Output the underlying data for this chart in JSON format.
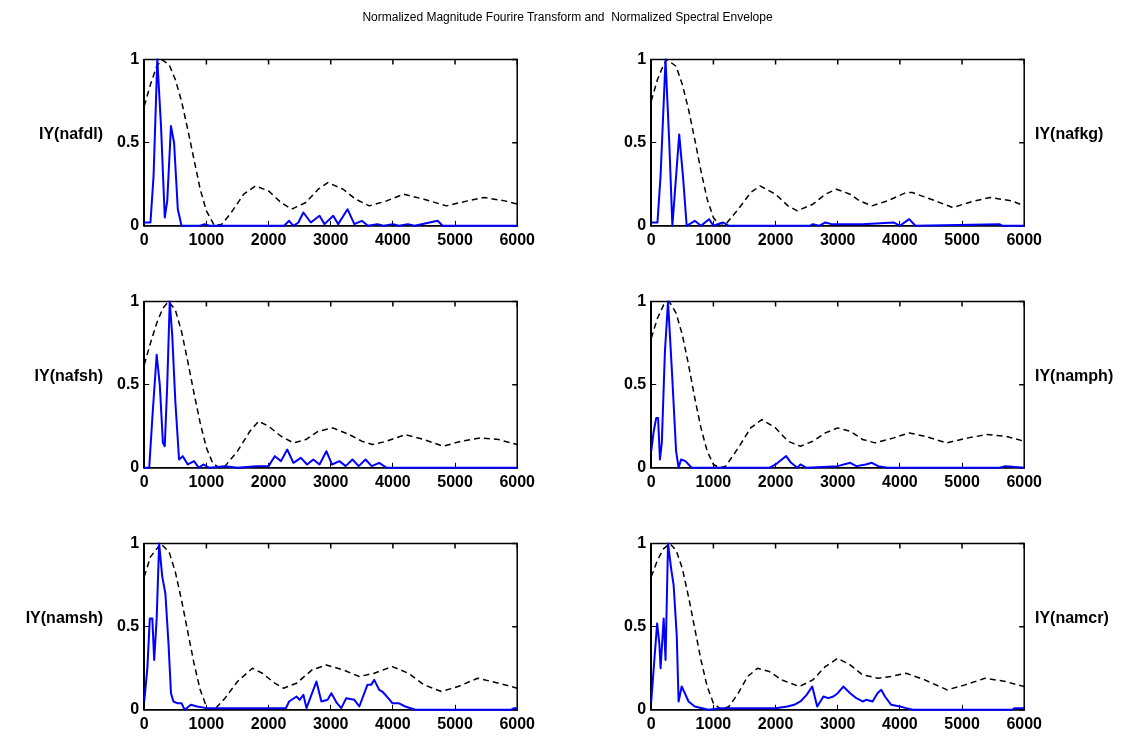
{
  "chart_data": [
    {
      "type": "line",
      "title": "Normalized Magnitude Fourire Transform and  Normalized Spectral Envelope",
      "ylabel": "IY(nafdl)",
      "xlim": [
        0,
        6000
      ],
      "ylim": [
        0,
        1
      ],
      "xticks": [
        0,
        1000,
        2000,
        3000,
        4000,
        5000,
        6000
      ],
      "yticks": [
        0,
        0.5,
        1
      ],
      "grid": false,
      "legend": false,
      "marker": "none",
      "series": [
        {
          "color": "#0000ff",
          "line_style": "solid",
          "x": [
            0,
            100,
            150,
            210,
            270,
            330,
            370,
            430,
            480,
            540,
            600,
            900,
            970,
            1050,
            2250,
            2330,
            2400,
            2480,
            2560,
            2680,
            2820,
            2900,
            3040,
            3120,
            3270,
            3380,
            3500,
            3600,
            3750,
            3850,
            4000,
            4100,
            4240,
            4350,
            4720,
            4800,
            6000
          ],
          "values": [
            0.02,
            0.02,
            0.3,
            1,
            0.6,
            0.05,
            0.15,
            0.6,
            0.5,
            0.1,
            0,
            0,
            0.01,
            0,
            0,
            0.03,
            0,
            0.02,
            0.08,
            0.02,
            0.06,
            0.01,
            0.06,
            0.01,
            0.1,
            0.01,
            0.03,
            0,
            0.01,
            0,
            0.01,
            0,
            0.01,
            0,
            0.03,
            0,
            0
          ]
        },
        {
          "color": "#000000",
          "line_style": "dashed",
          "x": [
            0,
            100,
            200,
            280,
            400,
            500,
            600,
            700,
            800,
            900,
            1000,
            1130,
            1250,
            1400,
            1600,
            1790,
            2000,
            2200,
            2370,
            2600,
            2800,
            2955,
            3200,
            3400,
            3620,
            3900,
            4170,
            4500,
            4860,
            5200,
            5470,
            5800,
            6000
          ],
          "values": [
            0.72,
            0.85,
            0.96,
            1,
            0.97,
            0.88,
            0.75,
            0.58,
            0.4,
            0.22,
            0.09,
            0,
            0.01,
            0.08,
            0.19,
            0.24,
            0.21,
            0.14,
            0.1,
            0.14,
            0.22,
            0.26,
            0.22,
            0.16,
            0.12,
            0.15,
            0.19,
            0.16,
            0.12,
            0.15,
            0.17,
            0.15,
            0.13
          ]
        }
      ]
    },
    {
      "type": "line",
      "ylabel": "IY(nafkg)",
      "xlim": [
        0,
        6000
      ],
      "ylim": [
        0,
        1
      ],
      "xticks": [
        0,
        1000,
        2000,
        3000,
        4000,
        5000,
        6000
      ],
      "yticks": [
        0,
        0.5,
        1
      ],
      "grid": false,
      "legend": false,
      "marker": "none",
      "series": [
        {
          "color": "#0000ff",
          "line_style": "solid",
          "x": [
            0,
            100,
            150,
            230,
            290,
            340,
            380,
            450,
            510,
            570,
            700,
            800,
            930,
            1000,
            1150,
            1250,
            2550,
            2600,
            2700,
            2800,
            2900,
            3400,
            3900,
            4000,
            4150,
            4250,
            5600,
            5650,
            6000
          ],
          "values": [
            0.02,
            0.02,
            0.3,
            1,
            0.5,
            0,
            0.2,
            0.55,
            0.3,
            0,
            0.03,
            0,
            0.04,
            0,
            0.02,
            0,
            0,
            0.01,
            0,
            0.02,
            0.01,
            0.01,
            0.02,
            0,
            0.04,
            0,
            0.01,
            0,
            0
          ]
        },
        {
          "color": "#000000",
          "line_style": "dashed",
          "x": [
            0,
            100,
            200,
            250,
            400,
            500,
            600,
            700,
            800,
            900,
            1000,
            1100,
            1200,
            1400,
            1600,
            1750,
            2000,
            2200,
            2350,
            2600,
            2800,
            2980,
            3200,
            3350,
            3550,
            3800,
            4100,
            4200,
            4500,
            4850,
            5200,
            5450,
            5800,
            6000
          ],
          "values": [
            0.75,
            0.88,
            0.97,
            1,
            0.96,
            0.85,
            0.7,
            0.52,
            0.33,
            0.16,
            0.05,
            0,
            0.01,
            0.1,
            0.2,
            0.24,
            0.19,
            0.12,
            0.09,
            0.13,
            0.19,
            0.22,
            0.19,
            0.15,
            0.12,
            0.15,
            0.2,
            0.2,
            0.16,
            0.11,
            0.15,
            0.17,
            0.15,
            0.12
          ]
        }
      ]
    },
    {
      "type": "line",
      "ylabel": "IY(nafsh)",
      "xlim": [
        0,
        6000
      ],
      "ylim": [
        0,
        1
      ],
      "xticks": [
        0,
        1000,
        2000,
        3000,
        4000,
        5000,
        6000
      ],
      "yticks": [
        0,
        0.5,
        1
      ],
      "grid": false,
      "legend": false,
      "marker": "none",
      "series": [
        {
          "color": "#0000ff",
          "line_style": "solid",
          "x": [
            0,
            80,
            130,
            200,
            250,
            300,
            330,
            370,
            410,
            450,
            500,
            560,
            620,
            700,
            800,
            880,
            950,
            1050,
            1300,
            1500,
            1800,
            2000,
            2100,
            2200,
            2300,
            2400,
            2520,
            2620,
            2720,
            2820,
            2930,
            3020,
            3140,
            3240,
            3350,
            3450,
            3560,
            3660,
            3780,
            3900,
            6000
          ],
          "values": [
            0,
            0,
            0.3,
            0.68,
            0.5,
            0.15,
            0.13,
            0.5,
            1,
            0.8,
            0.4,
            0.05,
            0.07,
            0.02,
            0.04,
            0,
            0.02,
            0,
            0.01,
            0,
            0.01,
            0.01,
            0.07,
            0.04,
            0.11,
            0.03,
            0.06,
            0.02,
            0.05,
            0.02,
            0.1,
            0.02,
            0.04,
            0.01,
            0.05,
            0.01,
            0.05,
            0.01,
            0.03,
            0,
            0
          ]
        },
        {
          "color": "#000000",
          "line_style": "dashed",
          "x": [
            0,
            100,
            200,
            300,
            390,
            500,
            600,
            700,
            800,
            900,
            1000,
            1100,
            1200,
            1300,
            1500,
            1700,
            1840,
            2000,
            2200,
            2400,
            2600,
            2800,
            3035,
            3300,
            3500,
            3670,
            3900,
            4200,
            4500,
            4810,
            5100,
            5420,
            5700,
            6000
          ],
          "values": [
            0.62,
            0.75,
            0.87,
            0.96,
            1,
            0.95,
            0.82,
            0.64,
            0.45,
            0.27,
            0.12,
            0.03,
            0,
            0.01,
            0.1,
            0.22,
            0.28,
            0.25,
            0.19,
            0.15,
            0.17,
            0.22,
            0.24,
            0.2,
            0.16,
            0.14,
            0.16,
            0.2,
            0.17,
            0.13,
            0.16,
            0.18,
            0.17,
            0.14
          ]
        }
      ]
    },
    {
      "type": "line",
      "ylabel": "IY(namph)",
      "xlim": [
        0,
        6000
      ],
      "ylim": [
        0,
        1
      ],
      "xticks": [
        0,
        1000,
        2000,
        3000,
        4000,
        5000,
        6000
      ],
      "yticks": [
        0,
        0.5,
        1
      ],
      "grid": false,
      "legend": false,
      "marker": "none",
      "series": [
        {
          "color": "#0000ff",
          "line_style": "solid",
          "x": [
            0,
            40,
            80,
            110,
            140,
            170,
            220,
            270,
            330,
            400,
            440,
            480,
            550,
            650,
            1900,
            2000,
            2100,
            2170,
            2250,
            2350,
            2400,
            2500,
            3000,
            3200,
            3300,
            3450,
            3550,
            3650,
            3800,
            5600,
            5700,
            6000
          ],
          "values": [
            0.1,
            0.22,
            0.3,
            0.3,
            0.05,
            0.15,
            0.7,
            1,
            0.6,
            0.1,
            0,
            0.05,
            0.04,
            0,
            0,
            0.02,
            0.05,
            0.07,
            0.03,
            0,
            0.02,
            0,
            0.01,
            0.03,
            0.01,
            0.02,
            0.03,
            0.01,
            0,
            0,
            0.01,
            0
          ]
        },
        {
          "color": "#000000",
          "line_style": "dashed",
          "x": [
            0,
            100,
            200,
            290,
            400,
            500,
            600,
            700,
            800,
            900,
            1000,
            1100,
            1200,
            1400,
            1600,
            1780,
            2000,
            2200,
            2400,
            2600,
            2800,
            3000,
            3200,
            3400,
            3600,
            3900,
            4150,
            4400,
            4750,
            5100,
            5400,
            5700,
            6000
          ],
          "values": [
            0.78,
            0.9,
            0.98,
            1,
            0.93,
            0.8,
            0.62,
            0.42,
            0.24,
            0.1,
            0.02,
            0,
            0.01,
            0.12,
            0.24,
            0.29,
            0.24,
            0.16,
            0.13,
            0.16,
            0.21,
            0.24,
            0.22,
            0.17,
            0.15,
            0.18,
            0.21,
            0.19,
            0.15,
            0.18,
            0.2,
            0.19,
            0.16
          ]
        }
      ]
    },
    {
      "type": "line",
      "ylabel": "IY(namsh)",
      "xlim": [
        0,
        6000
      ],
      "ylim": [
        0,
        1
      ],
      "xticks": [
        0,
        1000,
        2000,
        3000,
        4000,
        5000,
        6000
      ],
      "yticks": [
        0,
        0.5,
        1
      ],
      "grid": false,
      "legend": false,
      "marker": "none",
      "series": [
        {
          "color": "#0000ff",
          "line_style": "solid",
          "x": [
            0,
            50,
            90,
            130,
            160,
            200,
            240,
            290,
            340,
            390,
            430,
            470,
            530,
            600,
            650,
            750,
            850,
            1000,
            1500,
            2280,
            2330,
            2450,
            2500,
            2560,
            2610,
            2700,
            2770,
            2850,
            2950,
            3010,
            3100,
            3170,
            3250,
            3380,
            3460,
            3590,
            3650,
            3700,
            3780,
            3830,
            3950,
            3990,
            4090,
            4200,
            4360,
            5900,
            5950,
            6000
          ],
          "values": [
            0.05,
            0.25,
            0.55,
            0.55,
            0.3,
            0.55,
            1,
            0.8,
            0.7,
            0.4,
            0.1,
            0.05,
            0.04,
            0.04,
            0,
            0.03,
            0.02,
            0.01,
            0.01,
            0.01,
            0.05,
            0.08,
            0.06,
            0.09,
            0.01,
            0.1,
            0.17,
            0.05,
            0.06,
            0.1,
            0.04,
            0.01,
            0.07,
            0.06,
            0.02,
            0.15,
            0.15,
            0.18,
            0.12,
            0.11,
            0.06,
            0.04,
            0.04,
            0.02,
            0,
            0,
            0.01,
            0.01
          ]
        },
        {
          "color": "#000000",
          "line_style": "dashed",
          "x": [
            0,
            100,
            265,
            400,
            500,
            600,
            700,
            800,
            900,
            1000,
            1050,
            1150,
            1300,
            1500,
            1740,
            1900,
            2100,
            2240,
            2450,
            2700,
            2930,
            3200,
            3460,
            3700,
            3990,
            4250,
            4500,
            4780,
            5050,
            5365,
            5700,
            6000
          ],
          "values": [
            0.8,
            0.92,
            1,
            0.95,
            0.83,
            0.66,
            0.47,
            0.28,
            0.12,
            0.02,
            0,
            0.01,
            0.07,
            0.17,
            0.25,
            0.22,
            0.16,
            0.13,
            0.16,
            0.24,
            0.27,
            0.24,
            0.2,
            0.22,
            0.26,
            0.22,
            0.15,
            0.11,
            0.14,
            0.19,
            0.16,
            0.13
          ]
        }
      ]
    },
    {
      "type": "line",
      "ylabel": "IY(namcr)",
      "xlim": [
        0,
        6000
      ],
      "ylim": [
        0,
        1
      ],
      "xticks": [
        0,
        1000,
        2000,
        3000,
        4000,
        5000,
        6000
      ],
      "yticks": [
        0,
        0.5,
        1
      ],
      "grid": false,
      "legend": false,
      "marker": "none",
      "series": [
        {
          "color": "#0000ff",
          "line_style": "solid",
          "x": [
            0,
            50,
            95,
            130,
            150,
            200,
            230,
            270,
            320,
            360,
            410,
            440,
            490,
            540,
            600,
            700,
            920,
            1100,
            2000,
            2190,
            2300,
            2400,
            2500,
            2590,
            2670,
            2770,
            2850,
            2930,
            3000,
            3090,
            3200,
            3300,
            3400,
            3460,
            3560,
            3640,
            3700,
            3760,
            3860,
            4000,
            4100,
            4210,
            5800,
            5850,
            6000
          ],
          "values": [
            0.05,
            0.3,
            0.52,
            0.4,
            0.25,
            0.55,
            0.3,
            1,
            0.85,
            0.75,
            0.45,
            0.05,
            0.14,
            0.1,
            0.05,
            0.02,
            0,
            0.01,
            0.01,
            0.02,
            0.03,
            0.05,
            0.09,
            0.14,
            0.02,
            0.08,
            0.07,
            0.08,
            0.1,
            0.14,
            0.1,
            0.07,
            0.05,
            0.06,
            0.05,
            0.1,
            0.12,
            0.08,
            0.03,
            0.02,
            0.01,
            0,
            0,
            0.01,
            0.01
          ]
        },
        {
          "color": "#000000",
          "line_style": "dashed",
          "x": [
            0,
            100,
            200,
            300,
            400,
            500,
            600,
            700,
            800,
            900,
            1000,
            1130,
            1250,
            1400,
            1550,
            1710,
            1900,
            2100,
            2380,
            2600,
            2800,
            3000,
            3200,
            3400,
            3650,
            3850,
            4100,
            4400,
            4760,
            5050,
            5370,
            5700,
            6000
          ],
          "values": [
            0.8,
            0.9,
            0.97,
            1,
            0.96,
            0.85,
            0.68,
            0.49,
            0.3,
            0.14,
            0.04,
            0,
            0.02,
            0.1,
            0.2,
            0.25,
            0.23,
            0.18,
            0.14,
            0.18,
            0.26,
            0.31,
            0.27,
            0.21,
            0.19,
            0.2,
            0.22,
            0.18,
            0.12,
            0.15,
            0.19,
            0.17,
            0.14
          ]
        }
      ]
    }
  ]
}
